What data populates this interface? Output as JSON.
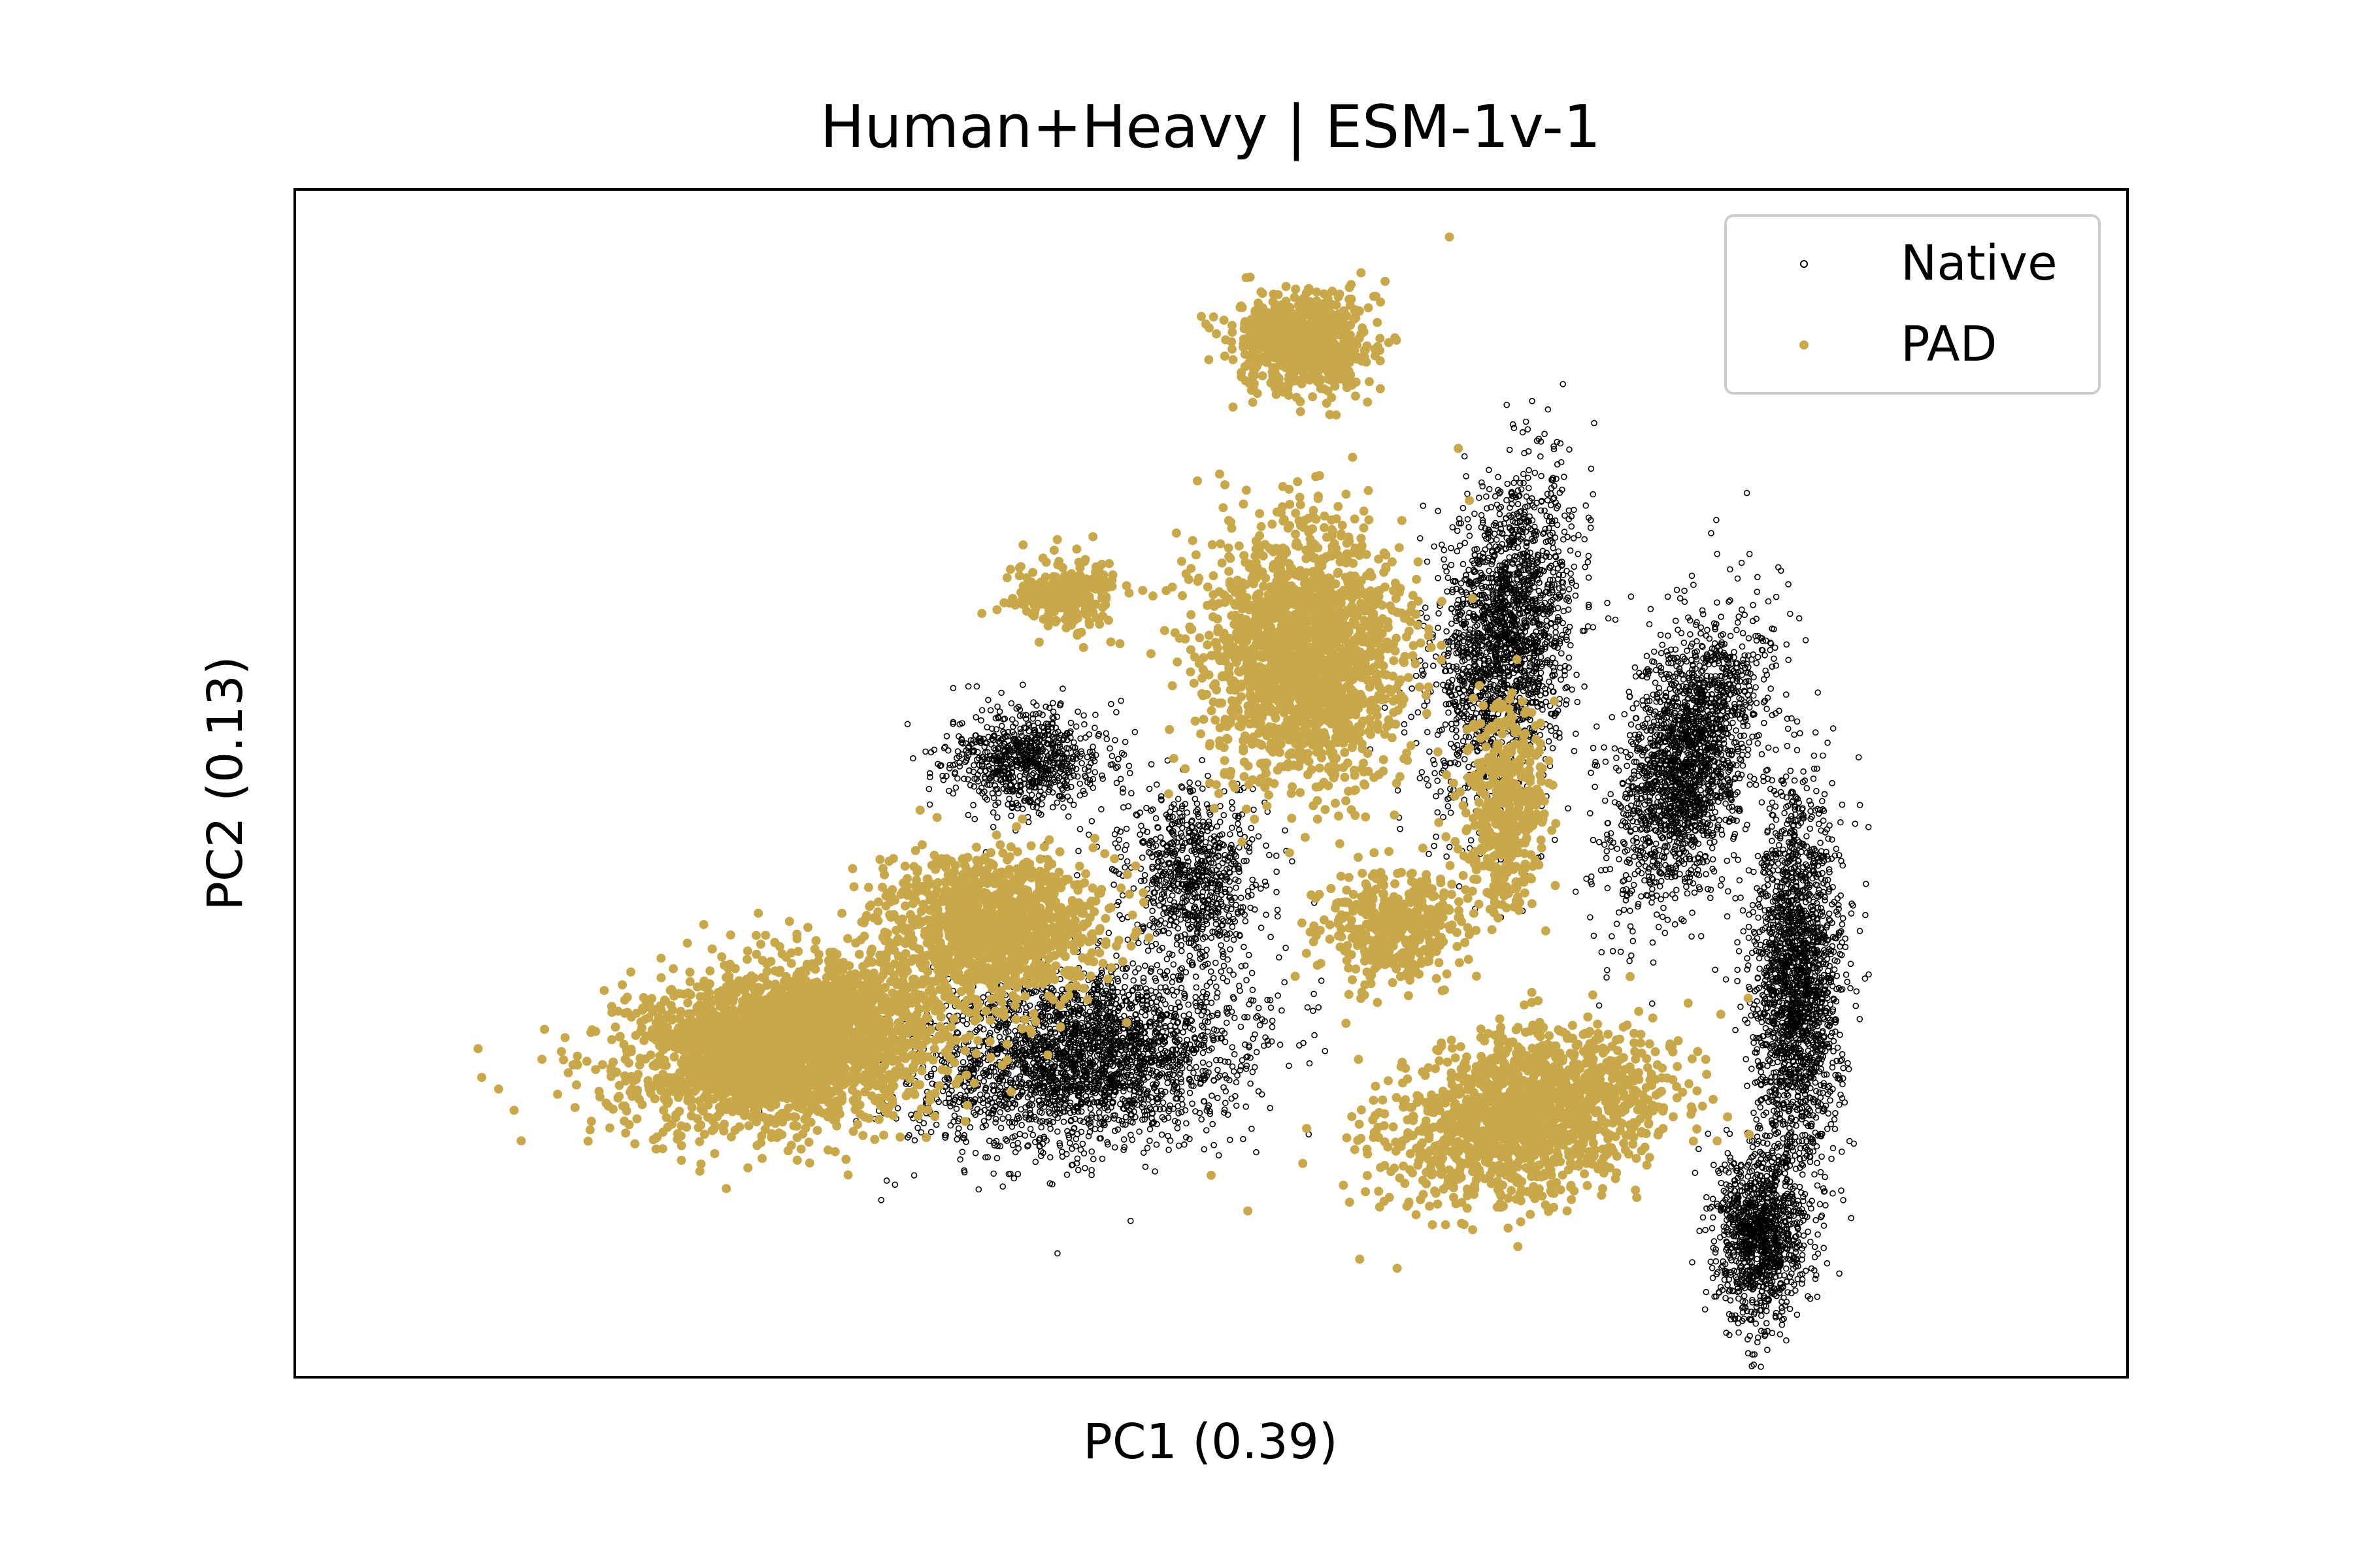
{
  "chart_data": {
    "type": "scatter",
    "title": "Human+Heavy | ESM-1v-1",
    "xlabel": "PC1 (0.39)",
    "ylabel": "PC2 (0.13)",
    "xticks": "none",
    "yticks": "none",
    "grid": false,
    "legend": {
      "position": "top-right",
      "entries": [
        {
          "name": "Native",
          "marker": "open-circle",
          "color": "#000000"
        },
        {
          "name": "PAD",
          "marker": "filled-circle",
          "color": "#c9a84a"
        }
      ]
    },
    "series": [
      {
        "name": "Native",
        "color": "#000000",
        "marker": "hollow",
        "clusters": [
          {
            "cx": 0.43,
            "cy": 0.27,
            "sx": 0.075,
            "sy": 0.06,
            "rot": 20,
            "weight": 1.2
          },
          {
            "cx": 0.66,
            "cy": 0.62,
            "sx": 0.03,
            "sy": 0.11,
            "rot": -5,
            "weight": 0.9
          },
          {
            "cx": 0.76,
            "cy": 0.52,
            "sx": 0.028,
            "sy": 0.1,
            "rot": -10,
            "weight": 0.9
          },
          {
            "cx": 0.82,
            "cy": 0.33,
            "sx": 0.02,
            "sy": 0.13,
            "rot": 0,
            "weight": 0.9
          },
          {
            "cx": 0.8,
            "cy": 0.12,
            "sx": 0.02,
            "sy": 0.06,
            "rot": 0,
            "weight": 0.5
          },
          {
            "cx": 0.4,
            "cy": 0.52,
            "sx": 0.035,
            "sy": 0.035,
            "rot": 0,
            "weight": 0.35
          },
          {
            "cx": 0.49,
            "cy": 0.42,
            "sx": 0.03,
            "sy": 0.06,
            "rot": 0,
            "weight": 0.35
          }
        ]
      },
      {
        "name": "PAD",
        "color": "#c9a84a",
        "marker": "filled",
        "clusters": [
          {
            "cx": 0.27,
            "cy": 0.28,
            "sx": 0.075,
            "sy": 0.055,
            "rot": 25,
            "weight": 1.6
          },
          {
            "cx": 0.38,
            "cy": 0.38,
            "sx": 0.05,
            "sy": 0.05,
            "rot": 0,
            "weight": 0.7
          },
          {
            "cx": 0.55,
            "cy": 0.61,
            "sx": 0.045,
            "sy": 0.09,
            "rot": 0,
            "weight": 1.1
          },
          {
            "cx": 0.55,
            "cy": 0.87,
            "sx": 0.03,
            "sy": 0.035,
            "rot": 0,
            "weight": 0.45
          },
          {
            "cx": 0.67,
            "cy": 0.22,
            "sx": 0.05,
            "sy": 0.07,
            "rot": -45,
            "weight": 0.9
          },
          {
            "cx": 0.42,
            "cy": 0.66,
            "sx": 0.025,
            "sy": 0.025,
            "rot": 0,
            "weight": 0.15
          },
          {
            "cx": 0.6,
            "cy": 0.38,
            "sx": 0.03,
            "sy": 0.04,
            "rot": 0,
            "weight": 0.25
          },
          {
            "cx": 0.66,
            "cy": 0.48,
            "sx": 0.02,
            "sy": 0.07,
            "rot": 0,
            "weight": 0.25
          }
        ],
        "outliers": [
          [
            0.63,
            0.96
          ],
          [
            0.5,
            0.17
          ],
          [
            0.52,
            0.14
          ],
          [
            0.55,
            0.18
          ]
        ]
      }
    ]
  }
}
